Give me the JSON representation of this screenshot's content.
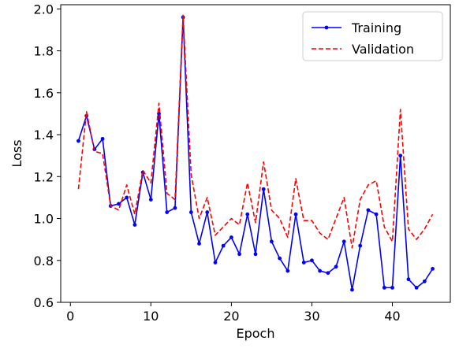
{
  "chart_data": {
    "type": "line",
    "xlabel": "Epoch",
    "ylabel": "Loss",
    "xlim": [
      -1.2,
      47.2
    ],
    "ylim": [
      0.6,
      2.02
    ],
    "xticks": [
      0,
      10,
      20,
      30,
      40
    ],
    "yticks": [
      0.6,
      0.8,
      1.0,
      1.2,
      1.4,
      1.6,
      1.8,
      2.0
    ],
    "ytick_labels": [
      "0.6",
      "0.8",
      "1.0",
      "1.2",
      "1.4",
      "1.6",
      "1.8",
      "2.0"
    ],
    "grid": false,
    "legend_position": "top-right",
    "x": [
      1,
      2,
      3,
      4,
      5,
      6,
      7,
      8,
      9,
      10,
      11,
      12,
      13,
      14,
      15,
      16,
      17,
      18,
      19,
      20,
      21,
      22,
      23,
      24,
      25,
      26,
      27,
      28,
      29,
      30,
      31,
      32,
      33,
      34,
      35,
      36,
      37,
      38,
      39,
      40,
      41,
      42,
      43,
      44,
      45
    ],
    "series": [
      {
        "name": "Training",
        "color": "#0000ff",
        "style": "solid-with-markers",
        "values": [
          1.37,
          1.49,
          1.33,
          1.38,
          1.06,
          1.07,
          1.1,
          0.97,
          1.22,
          1.09,
          1.5,
          1.03,
          1.05,
          1.96,
          1.03,
          0.88,
          1.03,
          0.79,
          0.87,
          0.91,
          0.83,
          1.02,
          0.83,
          1.14,
          0.89,
          0.81,
          0.75,
          1.02,
          0.79,
          0.8,
          0.75,
          0.74,
          0.77,
          0.89,
          0.66,
          0.87,
          1.04,
          1.02,
          0.67,
          0.67,
          1.3,
          0.71,
          0.67,
          0.7,
          0.76
        ]
      },
      {
        "name": "Validation",
        "color": "#ff0000",
        "style": "dashed",
        "values": [
          1.14,
          1.51,
          1.32,
          1.31,
          1.06,
          1.04,
          1.16,
          1.02,
          1.23,
          1.17,
          1.55,
          1.12,
          1.09,
          1.97,
          1.21,
          1.0,
          1.1,
          0.92,
          0.96,
          1.0,
          0.97,
          1.17,
          0.98,
          1.27,
          1.04,
          1.0,
          0.91,
          1.19,
          0.99,
          0.99,
          0.93,
          0.9,
          1.0,
          1.1,
          0.86,
          1.09,
          1.16,
          1.18,
          0.96,
          0.89,
          1.52,
          0.95,
          0.9,
          0.95,
          1.02
        ]
      }
    ]
  }
}
